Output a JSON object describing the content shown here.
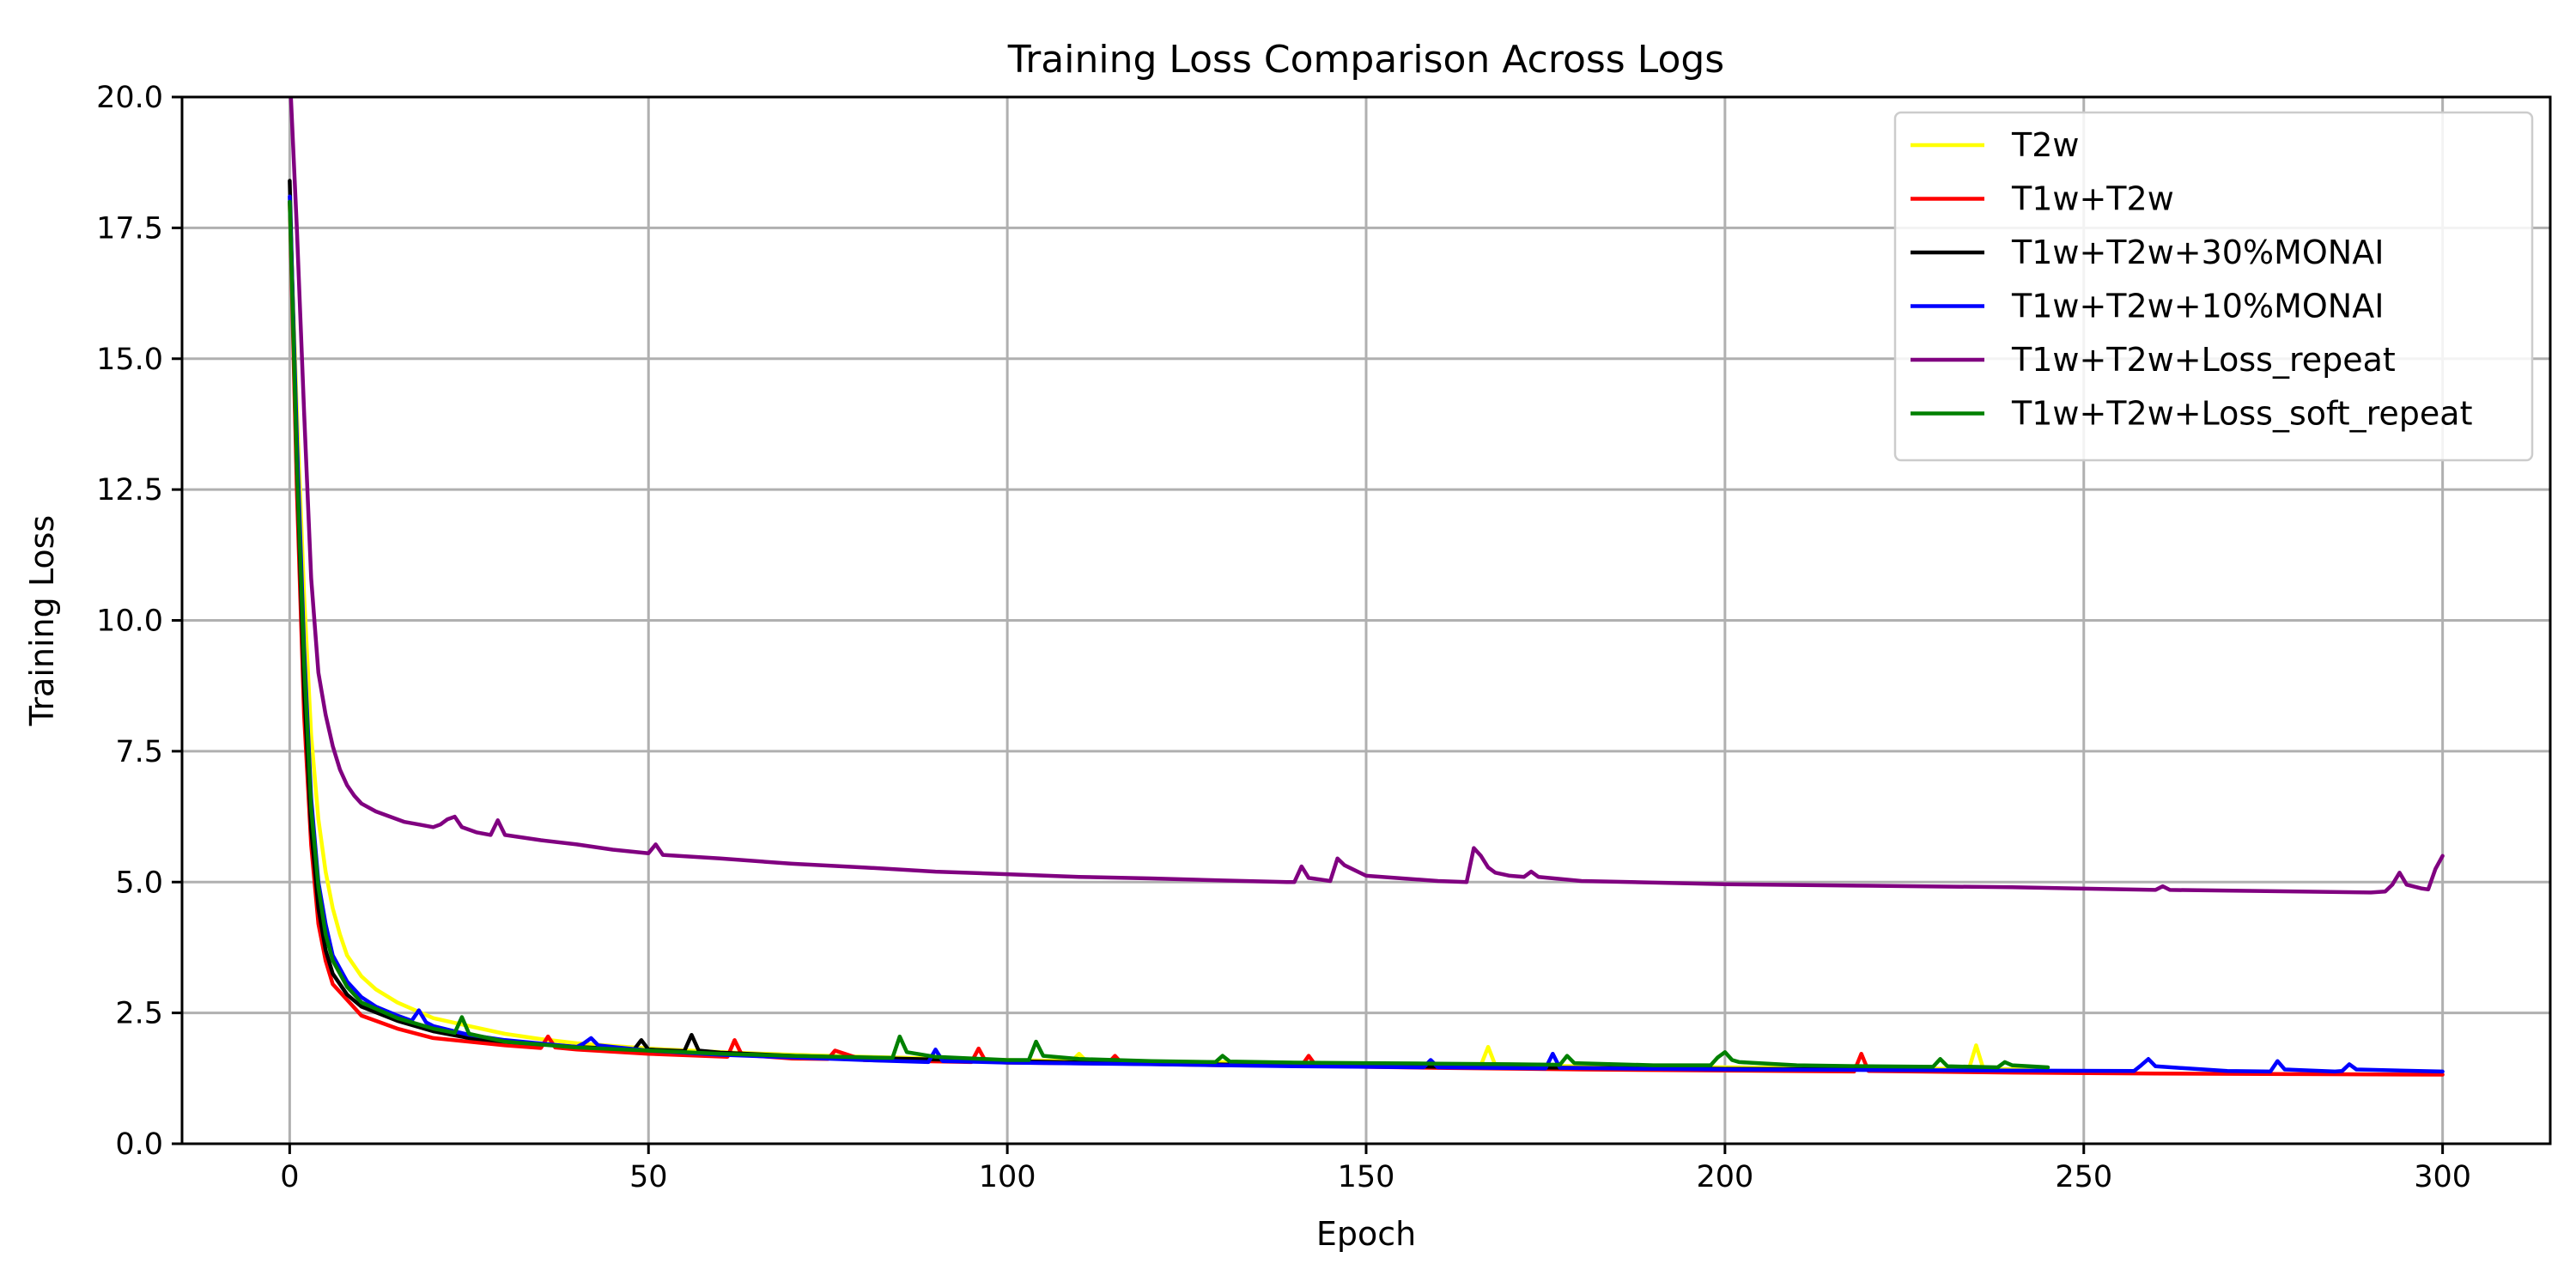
{
  "chart_data": {
    "type": "line",
    "title": "Training Loss Comparison Across Logs",
    "xlabel": "Epoch",
    "ylabel": "Training Loss",
    "xlim": [
      -15,
      315
    ],
    "ylim": [
      0,
      20
    ],
    "xticks": [
      0,
      50,
      100,
      150,
      200,
      250,
      300
    ],
    "yticks": [
      0.0,
      2.5,
      5.0,
      7.5,
      10.0,
      12.5,
      15.0,
      17.5,
      20.0
    ],
    "ytick_labels": [
      "0.0",
      "2.5",
      "5.0",
      "7.5",
      "10.0",
      "12.5",
      "15.0",
      "17.5",
      "20.0"
    ],
    "grid": true,
    "legend_position": "top-right",
    "series": [
      {
        "name": "T2w",
        "color": "#ffff00",
        "x": [
          0,
          1,
          2,
          3,
          4,
          5,
          6,
          7,
          8,
          10,
          12,
          15,
          20,
          25,
          30,
          35,
          40,
          50,
          60,
          70,
          80,
          100,
          109,
          110,
          111,
          130,
          150,
          166,
          167,
          168,
          180,
          200,
          220,
          234,
          235,
          236,
          245
        ],
        "y": [
          18.0,
          14.0,
          10.5,
          7.8,
          6.2,
          5.2,
          4.5,
          4.0,
          3.6,
          3.2,
          2.95,
          2.7,
          2.4,
          2.25,
          2.1,
          2.0,
          1.92,
          1.82,
          1.75,
          1.7,
          1.66,
          1.6,
          1.58,
          1.72,
          1.58,
          1.56,
          1.53,
          1.5,
          1.85,
          1.5,
          1.48,
          1.46,
          1.44,
          1.43,
          1.88,
          1.43,
          1.42
        ]
      },
      {
        "name": "T1w+T2w",
        "color": "#ff0000",
        "x": [
          0,
          1,
          2,
          3,
          4,
          5,
          6,
          8,
          10,
          15,
          20,
          25,
          30,
          35,
          36,
          37,
          40,
          50,
          61,
          62,
          63,
          70,
          75,
          76,
          80,
          95,
          96,
          97,
          100,
          114,
          115,
          116,
          130,
          141,
          142,
          143,
          150,
          160,
          180,
          200,
          218,
          219,
          220,
          240,
          260,
          280,
          300
        ],
        "y": [
          18.0,
          12.5,
          8.2,
          5.7,
          4.2,
          3.5,
          3.05,
          2.75,
          2.45,
          2.2,
          2.02,
          1.95,
          1.88,
          1.83,
          2.05,
          1.84,
          1.8,
          1.72,
          1.66,
          1.98,
          1.7,
          1.63,
          1.62,
          1.78,
          1.6,
          1.56,
          1.82,
          1.57,
          1.55,
          1.53,
          1.68,
          1.53,
          1.5,
          1.49,
          1.68,
          1.49,
          1.47,
          1.45,
          1.42,
          1.4,
          1.38,
          1.72,
          1.39,
          1.36,
          1.34,
          1.33,
          1.32
        ]
      },
      {
        "name": "T1w+T2w+30%MONAI",
        "color": "#000000",
        "x": [
          0,
          1,
          2,
          3,
          4,
          5,
          6,
          8,
          10,
          15,
          20,
          25,
          30,
          40,
          48,
          49,
          50,
          55,
          56,
          57,
          60,
          70,
          80,
          100,
          120,
          140,
          150,
          160,
          180,
          200,
          220
        ],
        "y": [
          18.4,
          13.0,
          8.7,
          6.0,
          4.5,
          3.7,
          3.25,
          2.85,
          2.62,
          2.35,
          2.15,
          2.02,
          1.95,
          1.85,
          1.8,
          1.98,
          1.8,
          1.77,
          2.08,
          1.78,
          1.74,
          1.68,
          1.64,
          1.58,
          1.53,
          1.5,
          1.49,
          1.47,
          1.45,
          1.43,
          1.42
        ]
      },
      {
        "name": "T1w+T2w+10%MONAI",
        "color": "#0000ff",
        "x": [
          0,
          1,
          2,
          3,
          4,
          5,
          6,
          8,
          10,
          12,
          15,
          17,
          18,
          19,
          20,
          25,
          30,
          40,
          41,
          42,
          43,
          45,
          50,
          60,
          70,
          80,
          89,
          90,
          91,
          100,
          120,
          140,
          150,
          158,
          159,
          160,
          175,
          176,
          177,
          190,
          200,
          220,
          240,
          257,
          258,
          259,
          260,
          270,
          276,
          277,
          278,
          285,
          286,
          287,
          288,
          300
        ],
        "y": [
          18.1,
          13.5,
          9.5,
          6.6,
          5.0,
          4.2,
          3.6,
          3.1,
          2.8,
          2.62,
          2.45,
          2.35,
          2.55,
          2.32,
          2.25,
          2.08,
          1.98,
          1.85,
          1.92,
          2.02,
          1.88,
          1.85,
          1.78,
          1.7,
          1.65,
          1.6,
          1.56,
          1.8,
          1.58,
          1.55,
          1.52,
          1.48,
          1.47,
          1.46,
          1.6,
          1.46,
          1.44,
          1.72,
          1.45,
          1.43,
          1.42,
          1.41,
          1.4,
          1.39,
          1.5,
          1.62,
          1.48,
          1.39,
          1.38,
          1.58,
          1.42,
          1.38,
          1.39,
          1.52,
          1.42,
          1.38
        ]
      },
      {
        "name": "T1w+T2w+Loss_repeat",
        "color": "#800080",
        "x": [
          0,
          1,
          2,
          3,
          4,
          5,
          6,
          7,
          8,
          9,
          10,
          12,
          14,
          16,
          18,
          20,
          21,
          22,
          23,
          24,
          26,
          28,
          29,
          30,
          35,
          40,
          45,
          50,
          51,
          52,
          60,
          70,
          80,
          90,
          100,
          110,
          120,
          130,
          139,
          140,
          141,
          142,
          145,
          146,
          147,
          150,
          160,
          164,
          165,
          166,
          167,
          168,
          170,
          172,
          173,
          174,
          180,
          200,
          220,
          240,
          260,
          261,
          262,
          280,
          290,
          292,
          293,
          294,
          295,
          297,
          298,
          299,
          300
        ],
        "y": [
          20.5,
          17.5,
          14.0,
          10.8,
          9.0,
          8.2,
          7.6,
          7.15,
          6.85,
          6.65,
          6.5,
          6.35,
          6.25,
          6.15,
          6.1,
          6.05,
          6.1,
          6.2,
          6.25,
          6.05,
          5.95,
          5.9,
          6.18,
          5.9,
          5.8,
          5.72,
          5.62,
          5.55,
          5.72,
          5.52,
          5.45,
          5.35,
          5.28,
          5.2,
          5.15,
          5.1,
          5.07,
          5.03,
          5.0,
          5.0,
          5.3,
          5.08,
          5.02,
          5.45,
          5.32,
          5.12,
          5.02,
          5.0,
          5.65,
          5.5,
          5.28,
          5.18,
          5.12,
          5.1,
          5.2,
          5.1,
          5.02,
          4.96,
          4.93,
          4.9,
          4.85,
          4.92,
          4.85,
          4.82,
          4.8,
          4.82,
          4.95,
          5.18,
          4.95,
          4.88,
          4.86,
          5.25,
          5.5
        ]
      },
      {
        "name": "T1w+T2w+Loss_soft_repeat",
        "color": "#008000",
        "x": [
          0,
          1,
          2,
          3,
          4,
          5,
          6,
          8,
          10,
          15,
          20,
          23,
          24,
          25,
          30,
          40,
          50,
          60,
          70,
          80,
          84,
          85,
          86,
          90,
          100,
          103,
          104,
          105,
          110,
          120,
          129,
          130,
          131,
          140,
          150,
          160,
          170,
          177,
          178,
          179,
          190,
          198,
          199,
          200,
          201,
          202,
          210,
          220,
          229,
          230,
          231,
          238,
          239,
          240,
          245
        ],
        "y": [
          18.0,
          13.0,
          9.2,
          6.4,
          4.9,
          4.0,
          3.5,
          3.0,
          2.7,
          2.4,
          2.2,
          2.12,
          2.42,
          2.1,
          1.95,
          1.84,
          1.78,
          1.72,
          1.68,
          1.65,
          1.64,
          2.05,
          1.75,
          1.66,
          1.6,
          1.6,
          1.95,
          1.68,
          1.62,
          1.58,
          1.56,
          1.68,
          1.57,
          1.55,
          1.54,
          1.53,
          1.52,
          1.51,
          1.68,
          1.54,
          1.5,
          1.5,
          1.65,
          1.75,
          1.6,
          1.56,
          1.5,
          1.48,
          1.47,
          1.62,
          1.48,
          1.46,
          1.56,
          1.5,
          1.46
        ]
      }
    ]
  }
}
